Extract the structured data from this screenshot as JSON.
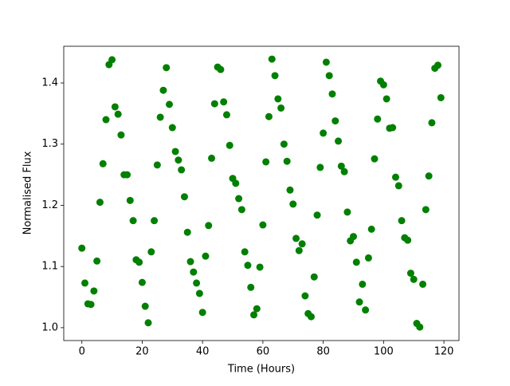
{
  "chart_data": {
    "type": "scatter",
    "xlabel": "Time (Hours)",
    "ylabel": "Normalised Flux",
    "color": "#008000",
    "x": [
      0,
      1,
      2,
      3,
      4,
      5,
      6,
      7,
      8,
      9,
      10,
      11,
      12,
      13,
      14,
      15,
      16,
      17,
      18,
      19,
      20,
      21,
      22,
      23,
      24,
      25,
      26,
      27,
      28,
      29,
      30,
      31,
      32,
      33,
      34,
      35,
      36,
      37,
      38,
      39,
      40,
      41,
      42,
      43,
      44,
      45,
      46,
      47,
      48,
      49,
      50,
      51,
      52,
      53,
      54,
      55,
      56,
      57,
      58,
      59,
      60,
      61,
      62,
      63,
      64,
      65,
      66,
      67,
      68,
      69,
      70,
      71,
      72,
      73,
      74,
      75,
      76,
      77,
      78,
      79,
      80,
      81,
      82,
      83,
      84,
      85,
      86,
      87,
      88,
      89,
      90,
      91,
      92,
      93,
      94,
      95,
      96,
      97,
      98,
      99,
      100,
      101,
      102,
      103,
      104,
      105,
      106,
      107,
      108,
      109,
      110,
      111,
      112,
      113,
      114,
      115,
      116,
      117,
      118,
      119
    ],
    "y": [
      1.13,
      1.073,
      1.039,
      1.038,
      1.06,
      1.109,
      1.205,
      1.268,
      1.34,
      1.43,
      1.438,
      1.361,
      1.349,
      1.315,
      1.25,
      1.25,
      1.208,
      1.175,
      1.111,
      1.107,
      1.074,
      1.035,
      1.008,
      1.124,
      1.175,
      1.266,
      1.344,
      1.388,
      1.425,
      1.365,
      1.327,
      1.288,
      1.274,
      1.258,
      1.214,
      1.156,
      1.108,
      1.091,
      1.073,
      1.056,
      1.025,
      1.117,
      1.167,
      1.277,
      1.366,
      1.426,
      1.422,
      1.369,
      1.348,
      1.298,
      1.244,
      1.236,
      1.211,
      1.193,
      1.124,
      1.102,
      1.066,
      1.021,
      1.031,
      1.099,
      1.168,
      1.271,
      1.345,
      1.439,
      1.412,
      1.374,
      1.359,
      1.3,
      1.272,
      1.225,
      1.202,
      1.146,
      1.126,
      1.137,
      1.052,
      1.023,
      1.018,
      1.083,
      1.184,
      1.262,
      1.318,
      1.434,
      1.412,
      1.382,
      1.338,
      1.305,
      1.264,
      1.255,
      1.189,
      1.142,
      1.149,
      1.107,
      1.042,
      1.071,
      1.029,
      1.114,
      1.161,
      1.276,
      1.341,
      1.403,
      1.397,
      1.374,
      1.326,
      1.327,
      1.246,
      1.232,
      1.175,
      1.147,
      1.143,
      1.089,
      1.079,
      1.007,
      1.001,
      1.071,
      1.193,
      1.248,
      1.335,
      1.424,
      1.429,
      1.376
    ],
    "xlim": [
      -6,
      125
    ],
    "ylim": [
      0.979,
      1.46
    ],
    "xticks": [
      0,
      20,
      40,
      60,
      80,
      100,
      120
    ],
    "yticks": [
      {
        "value": 1,
        "label": "1.0"
      },
      1.1,
      1.2,
      1.3,
      1.4
    ]
  }
}
